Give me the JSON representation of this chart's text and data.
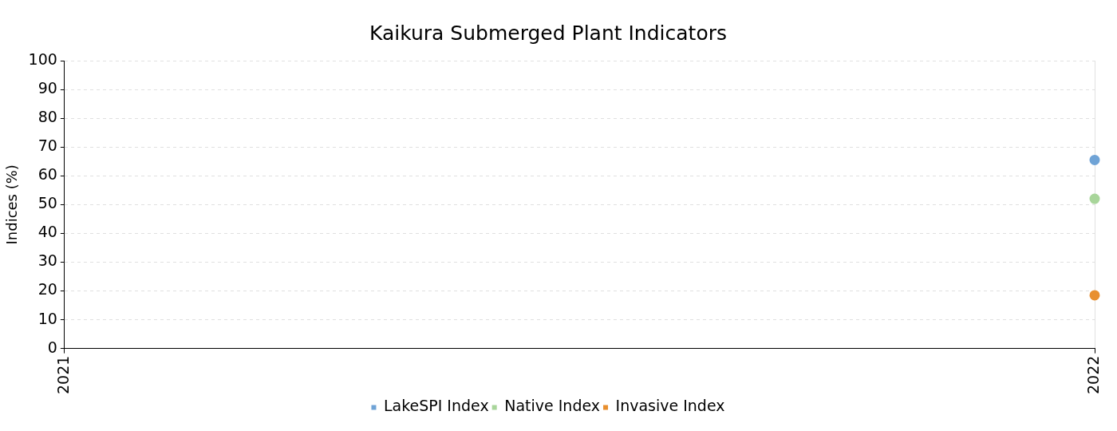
{
  "chart_data": {
    "type": "scatter",
    "title": "Kaikura Submerged Plant Indicators",
    "ylabel": "Indices (%)",
    "x": [
      2022
    ],
    "series": [
      {
        "name": "LakeSPI Index",
        "color": "#6fa3d6",
        "values": [
          65.5
        ]
      },
      {
        "name": "Native Index",
        "color": "#a8d59a",
        "values": [
          52
        ]
      },
      {
        "name": "Invasive Index",
        "color": "#e88f2f",
        "values": [
          18.5
        ]
      }
    ],
    "xlim": [
      2021,
      2022
    ],
    "xticks": [
      2021,
      2022
    ],
    "ylim": [
      0,
      100
    ],
    "yticks": [
      0,
      10,
      20,
      30,
      40,
      50,
      60,
      70,
      80,
      90,
      100
    ],
    "grid": true,
    "legend": "bottom",
    "marker": "circle"
  }
}
